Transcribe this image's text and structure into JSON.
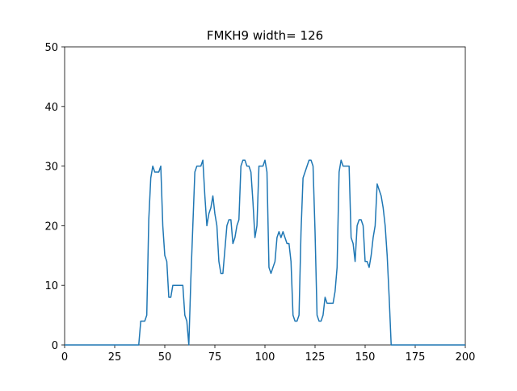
{
  "chart_data": {
    "type": "line",
    "title": "FMKH9 width= 126",
    "color": "#1f77b4",
    "x": [
      0,
      37,
      38,
      40,
      41,
      42,
      43,
      44,
      45,
      47,
      48,
      49,
      50,
      51,
      52,
      53,
      54,
      56,
      58,
      59,
      60,
      61,
      62,
      63,
      64,
      65,
      66,
      68,
      69,
      70,
      71,
      72,
      73,
      74,
      75,
      76,
      77,
      78,
      79,
      80,
      81,
      82,
      83,
      84,
      85,
      86,
      87,
      88,
      89,
      90,
      91,
      92,
      93,
      94,
      95,
      96,
      97,
      98,
      99,
      100,
      101,
      102,
      103,
      104,
      105,
      106,
      107,
      108,
      109,
      110,
      111,
      112,
      113,
      114,
      115,
      116,
      117,
      118,
      119,
      120,
      121,
      122,
      123,
      124,
      125,
      126,
      127,
      128,
      129,
      130,
      131,
      132,
      134,
      135,
      136,
      137,
      138,
      139,
      141,
      142,
      143,
      144,
      145,
      146,
      147,
      148,
      149,
      150,
      151,
      152,
      153,
      154,
      155,
      156,
      157,
      158,
      159,
      160,
      161,
      162,
      163,
      200
    ],
    "values": [
      0,
      0,
      4,
      4,
      5,
      21,
      28,
      30,
      29,
      29,
      30,
      20,
      15,
      14,
      8,
      8,
      10,
      10,
      10,
      10,
      5,
      4,
      0,
      11,
      20,
      29,
      30,
      30,
      31,
      25,
      20,
      22,
      23,
      25,
      22,
      20,
      14,
      12,
      12,
      16,
      20,
      21,
      21,
      17,
      18,
      20,
      21,
      30,
      31,
      31,
      30,
      30,
      29,
      24,
      18,
      20,
      30,
      30,
      30,
      31,
      29,
      13,
      12,
      13,
      14,
      18,
      19,
      18,
      19,
      18,
      17,
      17,
      14,
      5,
      4,
      4,
      5,
      19,
      28,
      29,
      30,
      31,
      31,
      30,
      19,
      5,
      4,
      4,
      5,
      8,
      7,
      7,
      7,
      9,
      13,
      29,
      31,
      30,
      30,
      30,
      18,
      17,
      14,
      20,
      21,
      21,
      20,
      14,
      14,
      13,
      15,
      18,
      20,
      27,
      26,
      25,
      23,
      20,
      15,
      8,
      0,
      0
    ],
    "xlim": [
      0,
      200
    ],
    "xticks": [
      0,
      25,
      50,
      75,
      100,
      125,
      150,
      175,
      200
    ],
    "ylim": [
      0,
      50
    ],
    "yticks": [
      0,
      10,
      20,
      30,
      40,
      50
    ],
    "grid": false
  }
}
